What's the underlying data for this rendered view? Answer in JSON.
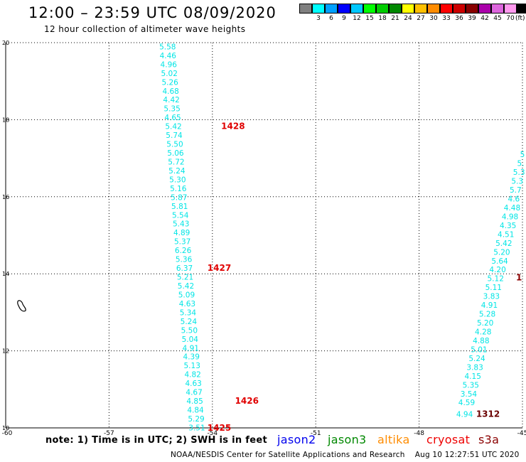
{
  "header": {
    "title": "12:00 – 23:59 UTC 08/09/2020",
    "subtitle": "12 hour collection of altimeter wave heights"
  },
  "scale": {
    "unit": "(ft)",
    "swatches": [
      {
        "color": "#808080",
        "label": ""
      },
      {
        "color": "#00ffff",
        "label": "3"
      },
      {
        "color": "#00a0ff",
        "label": "6"
      },
      {
        "color": "#0000ff",
        "label": "9"
      },
      {
        "color": "#00c8ff",
        "label": "12"
      },
      {
        "color": "#00ff00",
        "label": "15"
      },
      {
        "color": "#00cc00",
        "label": "18"
      },
      {
        "color": "#008800",
        "label": "21"
      },
      {
        "color": "#ffff00",
        "label": "24"
      },
      {
        "color": "#ffc000",
        "label": "27"
      },
      {
        "color": "#ff8c00",
        "label": "30"
      },
      {
        "color": "#ff0000",
        "label": "33"
      },
      {
        "color": "#cc0000",
        "label": "36"
      },
      {
        "color": "#880000",
        "label": "39"
      },
      {
        "color": "#aa00aa",
        "label": "42"
      },
      {
        "color": "#dd66dd",
        "label": "45"
      },
      {
        "color": "#ff99ee",
        "label": "70"
      },
      {
        "color": "#000000",
        "label": ""
      }
    ]
  },
  "chart_data": {
    "type": "scatter",
    "xlim": [
      -60,
      -45
    ],
    "ylim": [
      10,
      20
    ],
    "x_ticks": [
      "-60",
      "-57",
      "-54",
      "-51",
      "-48",
      "-45"
    ],
    "x_tick_values": [
      -60,
      -57,
      -54,
      -51,
      -48,
      -45
    ],
    "y_ticks": [
      "10",
      "12",
      "14",
      "16",
      "18",
      "20"
    ],
    "y_tick_values": [
      10,
      12,
      14,
      16,
      18,
      20
    ],
    "grid": true,
    "value_color": "#00e5e5",
    "tracks": [
      {
        "points": [
          {
            "x": -55.3,
            "y": 19.9,
            "v": "5.58"
          },
          {
            "x": -55.29,
            "y": 19.67,
            "v": "4.46"
          },
          {
            "x": -55.27,
            "y": 19.44,
            "v": "4.96"
          },
          {
            "x": -55.25,
            "y": 19.21,
            "v": "5.02"
          },
          {
            "x": -55.23,
            "y": 18.98,
            "v": "5.26"
          },
          {
            "x": -55.21,
            "y": 18.75,
            "v": "4.68"
          },
          {
            "x": -55.19,
            "y": 18.52,
            "v": "4.42"
          },
          {
            "x": -55.17,
            "y": 18.29,
            "v": "5.35"
          },
          {
            "x": -55.15,
            "y": 18.06,
            "v": "4.65"
          },
          {
            "x": -55.13,
            "y": 17.83,
            "v": "5.42"
          },
          {
            "x": -55.11,
            "y": 17.6,
            "v": "5.74"
          },
          {
            "x": -55.09,
            "y": 17.37,
            "v": "5.50"
          },
          {
            "x": -55.07,
            "y": 17.14,
            "v": "5.06"
          },
          {
            "x": -55.05,
            "y": 16.91,
            "v": "5.72"
          },
          {
            "x": -55.03,
            "y": 16.68,
            "v": "5.24"
          },
          {
            "x": -55.01,
            "y": 16.45,
            "v": "5.30"
          },
          {
            "x": -54.99,
            "y": 16.22,
            "v": "5.16"
          },
          {
            "x": -54.97,
            "y": 15.99,
            "v": "5.87"
          },
          {
            "x": -54.95,
            "y": 15.76,
            "v": "5.81"
          },
          {
            "x": -54.93,
            "y": 15.53,
            "v": "5.54"
          },
          {
            "x": -54.91,
            "y": 15.3,
            "v": "5.43"
          },
          {
            "x": -54.89,
            "y": 15.07,
            "v": "4.89"
          },
          {
            "x": -54.87,
            "y": 14.84,
            "v": "5.37"
          },
          {
            "x": -54.85,
            "y": 14.61,
            "v": "6.26"
          },
          {
            "x": -54.83,
            "y": 14.38,
            "v": "5.36"
          },
          {
            "x": -54.81,
            "y": 14.15,
            "v": "6.37"
          },
          {
            "x": -54.79,
            "y": 13.92,
            "v": "5.21"
          },
          {
            "x": -54.77,
            "y": 13.69,
            "v": "5.42"
          },
          {
            "x": -54.75,
            "y": 13.46,
            "v": "5.09"
          },
          {
            "x": -54.73,
            "y": 13.23,
            "v": "4.63"
          },
          {
            "x": -54.71,
            "y": 13.0,
            "v": "5.34"
          },
          {
            "x": -54.69,
            "y": 12.77,
            "v": "5.24"
          },
          {
            "x": -54.67,
            "y": 12.54,
            "v": "5.50"
          },
          {
            "x": -54.65,
            "y": 12.31,
            "v": "5.04"
          },
          {
            "x": -54.63,
            "y": 12.08,
            "v": "4.91"
          },
          {
            "x": -54.61,
            "y": 11.85,
            "v": "4.39"
          },
          {
            "x": -54.59,
            "y": 11.62,
            "v": "5.13"
          },
          {
            "x": -54.57,
            "y": 11.39,
            "v": "4.82"
          },
          {
            "x": -54.55,
            "y": 11.16,
            "v": "4.63"
          },
          {
            "x": -54.53,
            "y": 10.93,
            "v": "4.67"
          },
          {
            "x": -54.51,
            "y": 10.7,
            "v": "4.85"
          },
          {
            "x": -54.49,
            "y": 10.47,
            "v": "4.84"
          },
          {
            "x": -54.47,
            "y": 10.24,
            "v": "5.29"
          },
          {
            "x": -54.45,
            "y": 10.01,
            "v": "3.51"
          }
        ]
      },
      {
        "points": [
          {
            "x": -45.0,
            "y": 17.1,
            "v": "5"
          },
          {
            "x": -45.05,
            "y": 16.87,
            "v": "5."
          },
          {
            "x": -45.1,
            "y": 16.64,
            "v": "5.3"
          },
          {
            "x": -45.15,
            "y": 16.41,
            "v": "5.3"
          },
          {
            "x": -45.2,
            "y": 16.18,
            "v": "5.7"
          },
          {
            "x": -45.25,
            "y": 15.95,
            "v": "4.6"
          },
          {
            "x": -45.3,
            "y": 15.72,
            "v": "4.48"
          },
          {
            "x": -45.36,
            "y": 15.49,
            "v": "4.98"
          },
          {
            "x": -45.42,
            "y": 15.26,
            "v": "4.35"
          },
          {
            "x": -45.48,
            "y": 15.03,
            "v": "4.51"
          },
          {
            "x": -45.54,
            "y": 14.8,
            "v": "5.42"
          },
          {
            "x": -45.6,
            "y": 14.57,
            "v": "5.20"
          },
          {
            "x": -45.66,
            "y": 14.34,
            "v": "5.64"
          },
          {
            "x": -45.72,
            "y": 14.11,
            "v": "4.20"
          },
          {
            "x": -45.78,
            "y": 13.88,
            "v": "5.12"
          },
          {
            "x": -45.84,
            "y": 13.65,
            "v": "5.11"
          },
          {
            "x": -45.9,
            "y": 13.42,
            "v": "3.83"
          },
          {
            "x": -45.96,
            "y": 13.19,
            "v": "4.91"
          },
          {
            "x": -46.02,
            "y": 12.96,
            "v": "5.28"
          },
          {
            "x": -46.08,
            "y": 12.73,
            "v": "5.20"
          },
          {
            "x": -46.14,
            "y": 12.5,
            "v": "4.28"
          },
          {
            "x": -46.2,
            "y": 12.27,
            "v": "4.88"
          },
          {
            "x": -46.26,
            "y": 12.04,
            "v": "5.01"
          },
          {
            "x": -46.32,
            "y": 11.81,
            "v": "5.24"
          },
          {
            "x": -46.38,
            "y": 11.58,
            "v": "3.83"
          },
          {
            "x": -46.44,
            "y": 11.35,
            "v": "4.15"
          },
          {
            "x": -46.5,
            "y": 11.12,
            "v": "5.35"
          },
          {
            "x": -46.56,
            "y": 10.89,
            "v": "3.54"
          },
          {
            "x": -46.62,
            "y": 10.66,
            "v": "4.59"
          },
          {
            "x": -46.68,
            "y": 10.36,
            "v": "4.94"
          }
        ]
      }
    ],
    "time_labels": [
      {
        "x": -53.4,
        "y": 17.83,
        "text": "1428",
        "color": "#e00000"
      },
      {
        "x": -53.8,
        "y": 14.15,
        "text": "1427",
        "color": "#e00000"
      },
      {
        "x": -53.0,
        "y": 10.7,
        "text": "1426",
        "color": "#e00000"
      },
      {
        "x": -53.8,
        "y": 10.0,
        "text": "1425",
        "color": "#e00000"
      },
      {
        "x": -45.1,
        "y": 13.9,
        "text": "1",
        "color": "#8b0000"
      },
      {
        "x": -46.0,
        "y": 10.36,
        "text": "1312",
        "color": "#6b0000"
      }
    ]
  },
  "notes": {
    "text": "note: 1) Time is in UTC; 2) SWH is in feet"
  },
  "satellites": [
    {
      "name": "jason2",
      "color": "#0000ee"
    },
    {
      "name": "jason3",
      "color": "#008800"
    },
    {
      "name": "altika",
      "color": "#ff8c00"
    },
    {
      "name": "cryosat",
      "color": "#ee0000"
    },
    {
      "name": "s3a",
      "color": "#8b0000"
    }
  ],
  "footer": {
    "credit": "NOAA/NESDIS Center for Satellite Applications and Research",
    "timestamp": "Aug 10 12:27:51 UTC 2020"
  }
}
